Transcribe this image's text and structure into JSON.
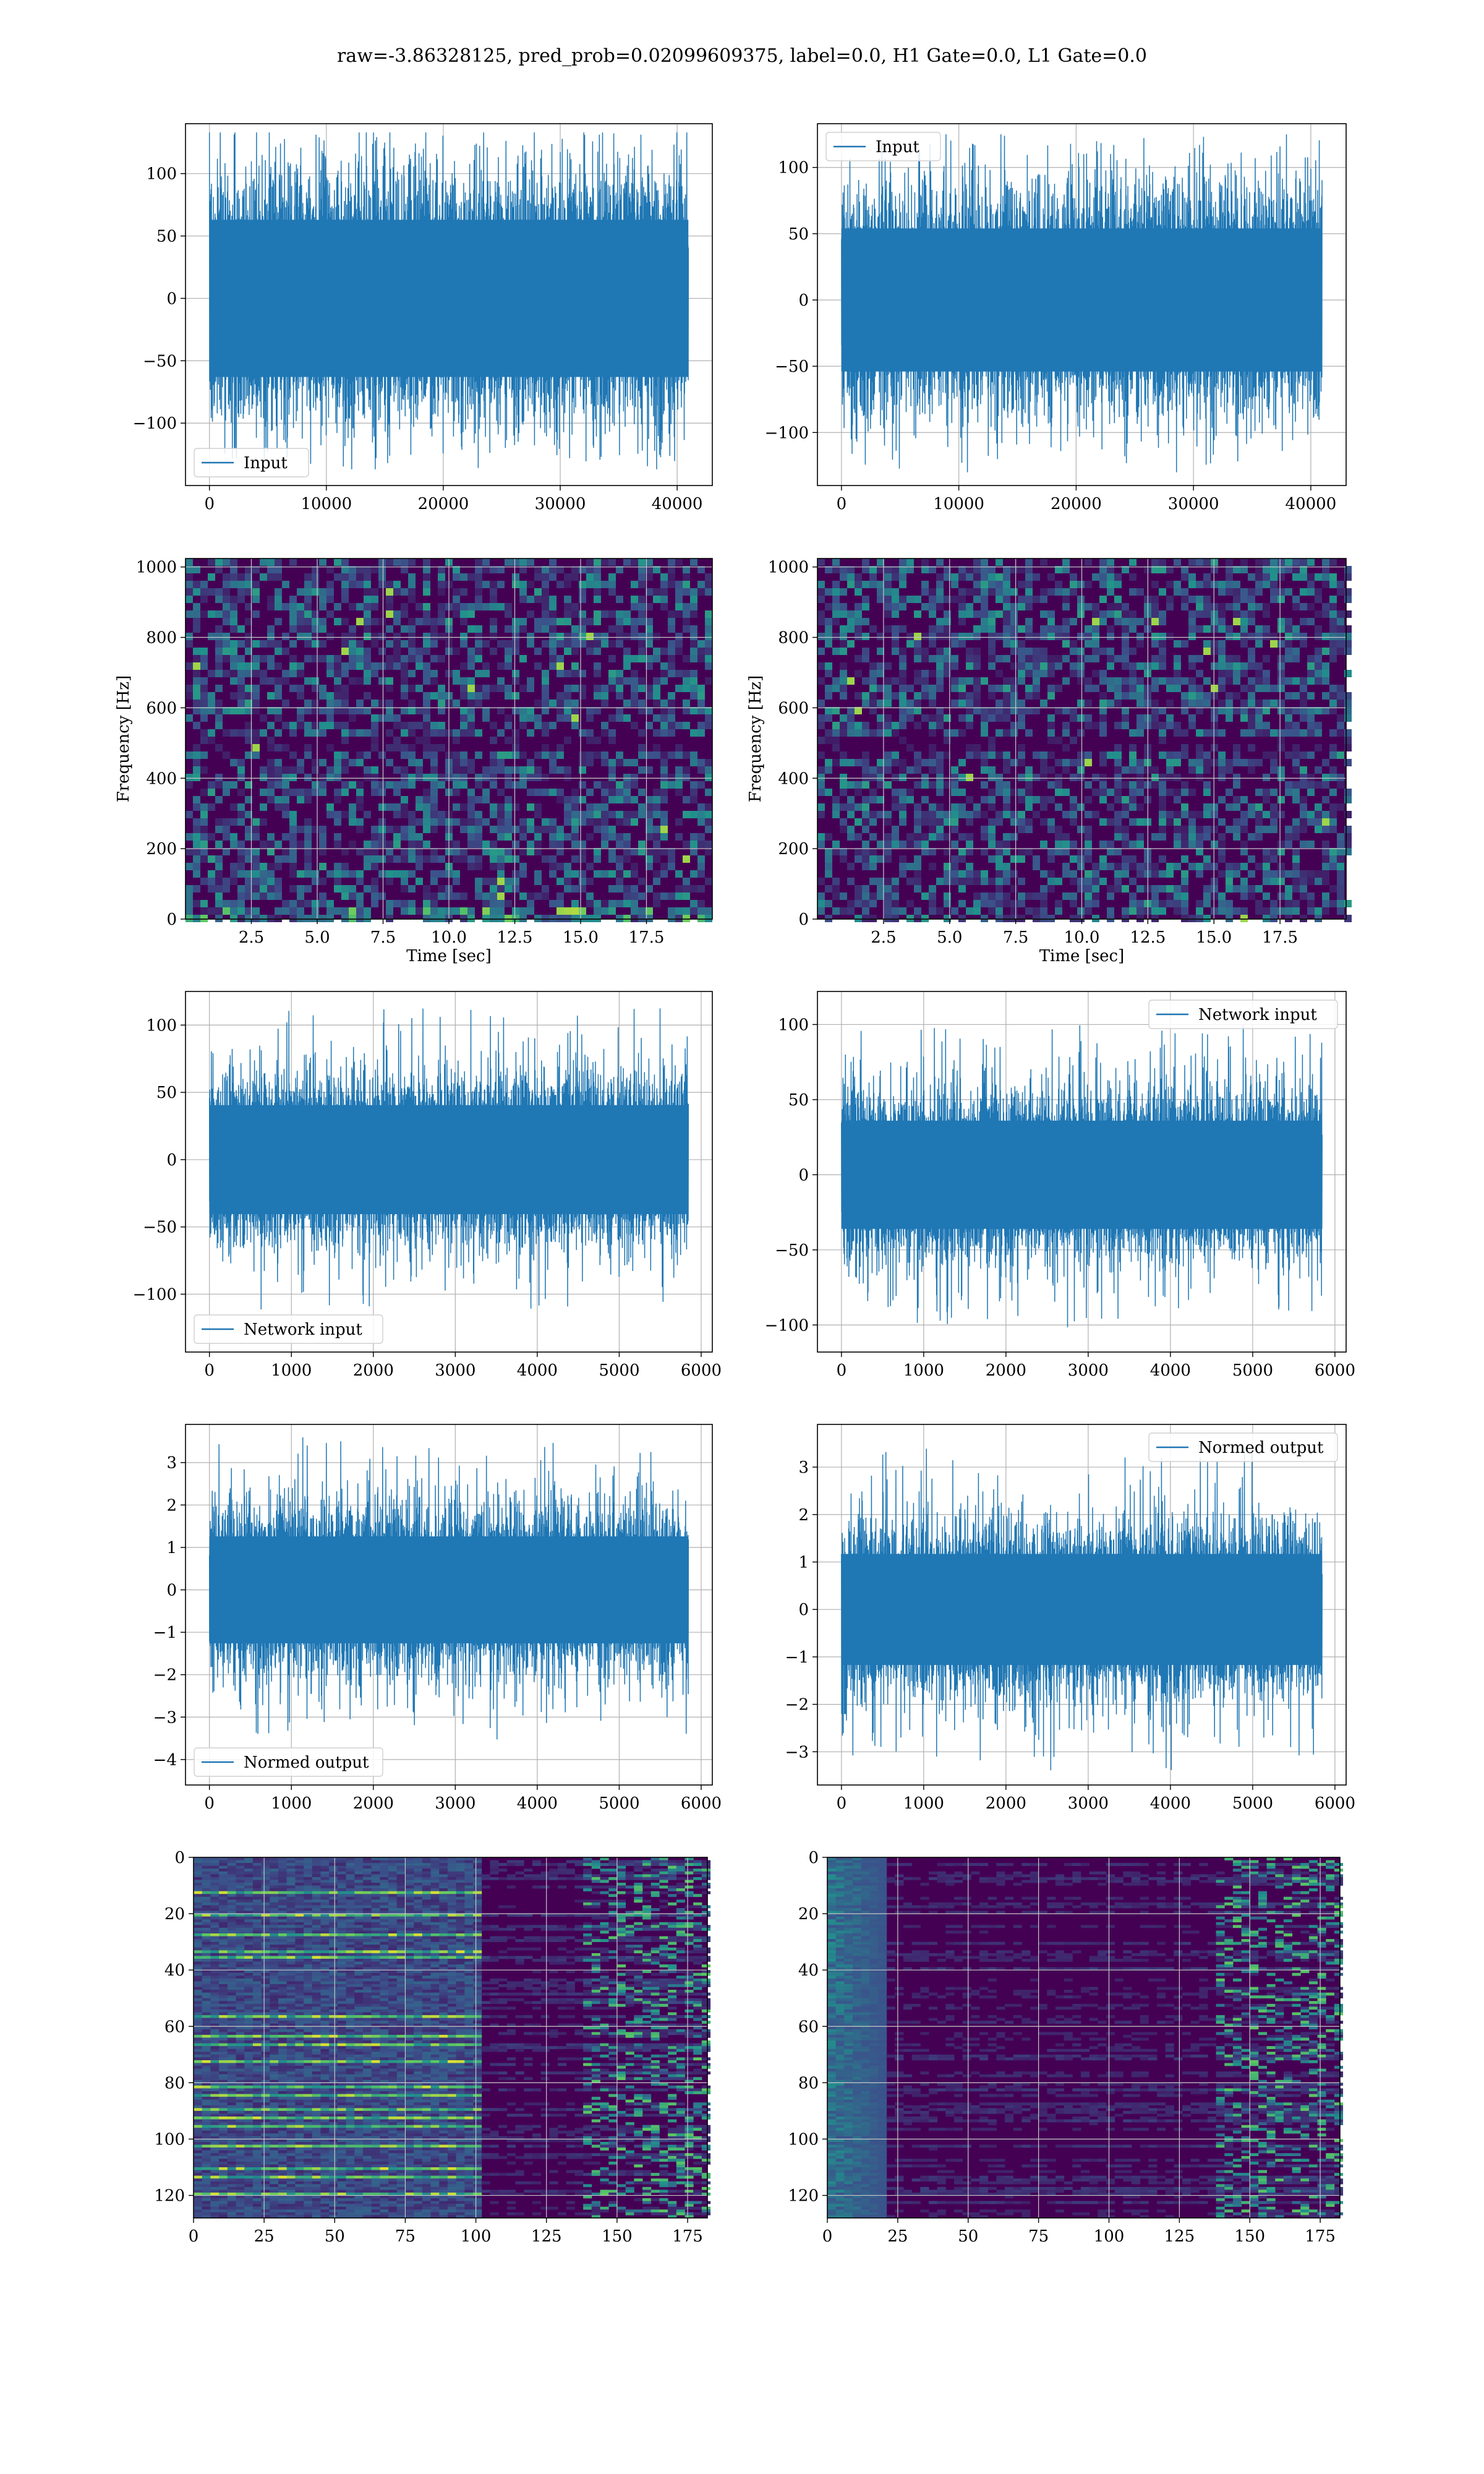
{
  "figure": {
    "title": "raw=-3.86328125, pred_prob=0.02099609375, label=0.0, H1 Gate=0.0, L1 Gate=0.0"
  },
  "colors": {
    "series": "#1f77b4",
    "grid": "#b0b0b0",
    "viridis_low": "#440154",
    "viridis_mid": "#21918c",
    "viridis_high": "#fde725"
  },
  "chart_data": [
    {
      "id": "input_h1",
      "type": "line",
      "legend": "Input",
      "legend_loc": "lower-left",
      "x_range": [
        0,
        40960
      ],
      "y_range": [
        -137,
        133
      ],
      "ylim": [
        -150,
        140
      ],
      "xticks": [
        0,
        10000,
        20000,
        30000,
        40000
      ],
      "yticks": [
        -100,
        -50,
        0,
        50,
        100
      ],
      "band": 70,
      "peak": 133
    },
    {
      "id": "input_l1",
      "type": "line",
      "legend": "Input",
      "legend_loc": "upper-left",
      "x_range": [
        0,
        40960
      ],
      "y_range": [
        -130,
        125
      ],
      "ylim": [
        -140,
        133
      ],
      "xticks": [
        0,
        10000,
        20000,
        30000,
        40000
      ],
      "yticks": [
        -100,
        -50,
        0,
        50,
        100
      ],
      "band": 60,
      "peak": 125
    },
    {
      "id": "spec_h1",
      "type": "heatmap",
      "xlabel": "Time [sec]",
      "ylabel": "Frequency [Hz]",
      "xlim": [
        0,
        20
      ],
      "ylim": [
        0,
        1024
      ],
      "xticks": [
        "2.5",
        "5.0",
        "7.5",
        "10.0",
        "12.5",
        "15.0",
        "17.5"
      ],
      "xtick_values": [
        2.5,
        5.0,
        7.5,
        10.0,
        12.5,
        15.0,
        17.5
      ],
      "yticks": [
        0,
        200,
        400,
        600,
        800,
        1000
      ]
    },
    {
      "id": "spec_l1",
      "type": "heatmap",
      "xlabel": "Time [sec]",
      "ylabel": "Frequency [Hz]",
      "xlim": [
        0,
        20
      ],
      "ylim": [
        0,
        1024
      ],
      "xticks": [
        "2.5",
        "5.0",
        "7.5",
        "10.0",
        "12.5",
        "15.0",
        "17.5"
      ],
      "xtick_values": [
        2.5,
        5.0,
        7.5,
        10.0,
        12.5,
        15.0,
        17.5
      ],
      "yticks": [
        0,
        200,
        400,
        600,
        800,
        1000
      ]
    },
    {
      "id": "net_h1",
      "type": "line",
      "legend": "Network input",
      "legend_loc": "lower-left",
      "x_range": [
        0,
        5844
      ],
      "y_range": [
        -130,
        113
      ],
      "ylim": [
        -143,
        125
      ],
      "xticks": [
        0,
        1000,
        2000,
        3000,
        4000,
        5000,
        6000
      ],
      "yticks": [
        -100,
        -50,
        0,
        50,
        100
      ],
      "band": 45,
      "peak": 113
    },
    {
      "id": "net_l1",
      "type": "line",
      "legend": "Network input",
      "legend_loc": "upper-right",
      "x_range": [
        0,
        5844
      ],
      "y_range": [
        -107,
        100
      ],
      "ylim": [
        -118,
        122
      ],
      "xticks": [
        0,
        1000,
        2000,
        3000,
        4000,
        5000,
        6000
      ],
      "yticks": [
        -100,
        -50,
        0,
        50,
        100
      ],
      "band": 40,
      "peak": 100
    },
    {
      "id": "norm_h1",
      "type": "line",
      "legend": "Normed output",
      "legend_loc": "lower-left",
      "x_range": [
        0,
        5844
      ],
      "y_range": [
        -4.2,
        3.6
      ],
      "ylim": [
        -4.6,
        3.9
      ],
      "xticks": [
        0,
        1000,
        2000,
        3000,
        4000,
        5000,
        6000
      ],
      "yticks": [
        -4,
        -3,
        -2,
        -1,
        0,
        1,
        2,
        3
      ],
      "band": 1.4,
      "peak": 3.6
    },
    {
      "id": "norm_l1",
      "type": "line",
      "legend": "Normed output",
      "legend_loc": "upper-right",
      "x_range": [
        0,
        5844
      ],
      "y_range": [
        -3.4,
        3.4
      ],
      "ylim": [
        -3.7,
        3.9
      ],
      "xticks": [
        0,
        1000,
        2000,
        3000,
        4000,
        5000,
        6000
      ],
      "yticks": [
        -3,
        -2,
        -1,
        0,
        1,
        2,
        3
      ],
      "band": 1.3,
      "peak": 3.4
    },
    {
      "id": "feat_h1",
      "type": "heatmap",
      "xlim": [
        0,
        182
      ],
      "ylim": [
        0,
        128
      ],
      "xticks": [
        0,
        25,
        50,
        75,
        100,
        125,
        150,
        175
      ],
      "yticks": [
        0,
        20,
        40,
        60,
        80,
        100,
        120
      ],
      "bright_rows": [
        12,
        20,
        27,
        33,
        35,
        56,
        63,
        66,
        72,
        81,
        84,
        89,
        92,
        95,
        102,
        110,
        113,
        119
      ],
      "bright_until": 100
    },
    {
      "id": "feat_l1",
      "type": "heatmap",
      "xlim": [
        0,
        182
      ],
      "ylim": [
        0,
        128
      ],
      "xticks": [
        0,
        25,
        50,
        75,
        100,
        125,
        150,
        175
      ],
      "yticks": [
        0,
        20,
        40,
        60,
        80,
        100,
        120
      ],
      "bright_rows": [],
      "bright_until": 20
    }
  ]
}
